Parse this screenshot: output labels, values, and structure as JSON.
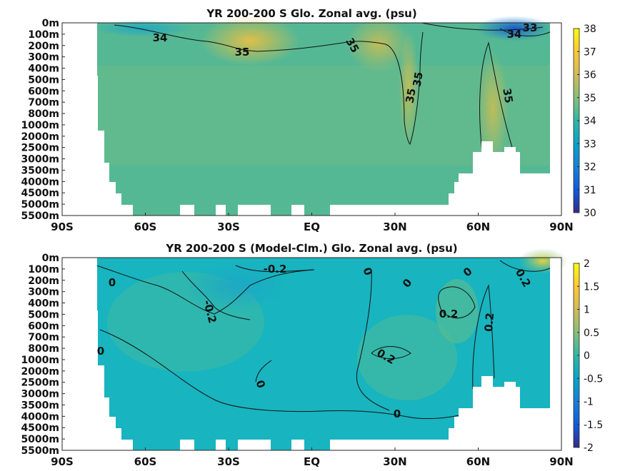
{
  "chart_data": [
    {
      "type": "heatmap",
      "title": "YR 200-200 S Glo. Zonal avg. (psu)",
      "x_ticks": [
        "90S",
        "60S",
        "30S",
        "EQ",
        "30N",
        "60N",
        "90N"
      ],
      "x_values": [
        -90,
        -60,
        -30,
        0,
        30,
        60,
        90
      ],
      "y_ticks": [
        "0m",
        "100m",
        "200m",
        "300m",
        "400m",
        "500m",
        "600m",
        "700m",
        "800m",
        "1000m",
        "2000m",
        "2500m",
        "3000m",
        "3500m",
        "4000m",
        "4500m",
        "5000m",
        "5500m"
      ],
      "colorbar": {
        "min": 30,
        "max": 38,
        "ticks": [
          "30",
          "31",
          "32",
          "33",
          "34",
          "35",
          "36",
          "37",
          "38"
        ]
      },
      "contour_labels": [
        "34",
        "35",
        "35",
        "35",
        "35",
        "35",
        "33",
        "34"
      ],
      "colormap": [
        "#352a87",
        "#0f5cdd",
        "#1481d6",
        "#06a4ca",
        "#2eb7a4",
        "#87bf77",
        "#d1bb59",
        "#fec832",
        "#f9fb0e"
      ]
    },
    {
      "type": "heatmap",
      "title": "YR 200-200 S (Model-Clm.) Glo. Zonal avg. (psu)",
      "x_ticks": [
        "90S",
        "60S",
        "30S",
        "EQ",
        "30N",
        "60N",
        "90N"
      ],
      "x_values": [
        -90,
        -60,
        -30,
        0,
        30,
        60,
        90
      ],
      "y_ticks": [
        "0m",
        "100m",
        "200m",
        "300m",
        "400m",
        "500m",
        "600m",
        "700m",
        "800m",
        "1000m",
        "2000m",
        "2500m",
        "3000m",
        "3500m",
        "4000m",
        "4500m",
        "5000m",
        "5500m"
      ],
      "colorbar": {
        "min": -2,
        "max": 2,
        "ticks": [
          "-2",
          "-1.5",
          "-1",
          "-0.5",
          "0",
          "0.5",
          "1",
          "1.5",
          "2"
        ]
      },
      "contour_labels": [
        "0",
        "0",
        "-0.2",
        "-0.2",
        "0",
        "0",
        "0",
        "0",
        "0.2",
        "0.2",
        "0.2",
        "0",
        "0.2"
      ],
      "colormap": [
        "#352a87",
        "#0f5cdd",
        "#1481d6",
        "#06a4ca",
        "#2eb7a4",
        "#87bf77",
        "#d1bb59",
        "#fec832",
        "#f9fb0e"
      ]
    }
  ]
}
